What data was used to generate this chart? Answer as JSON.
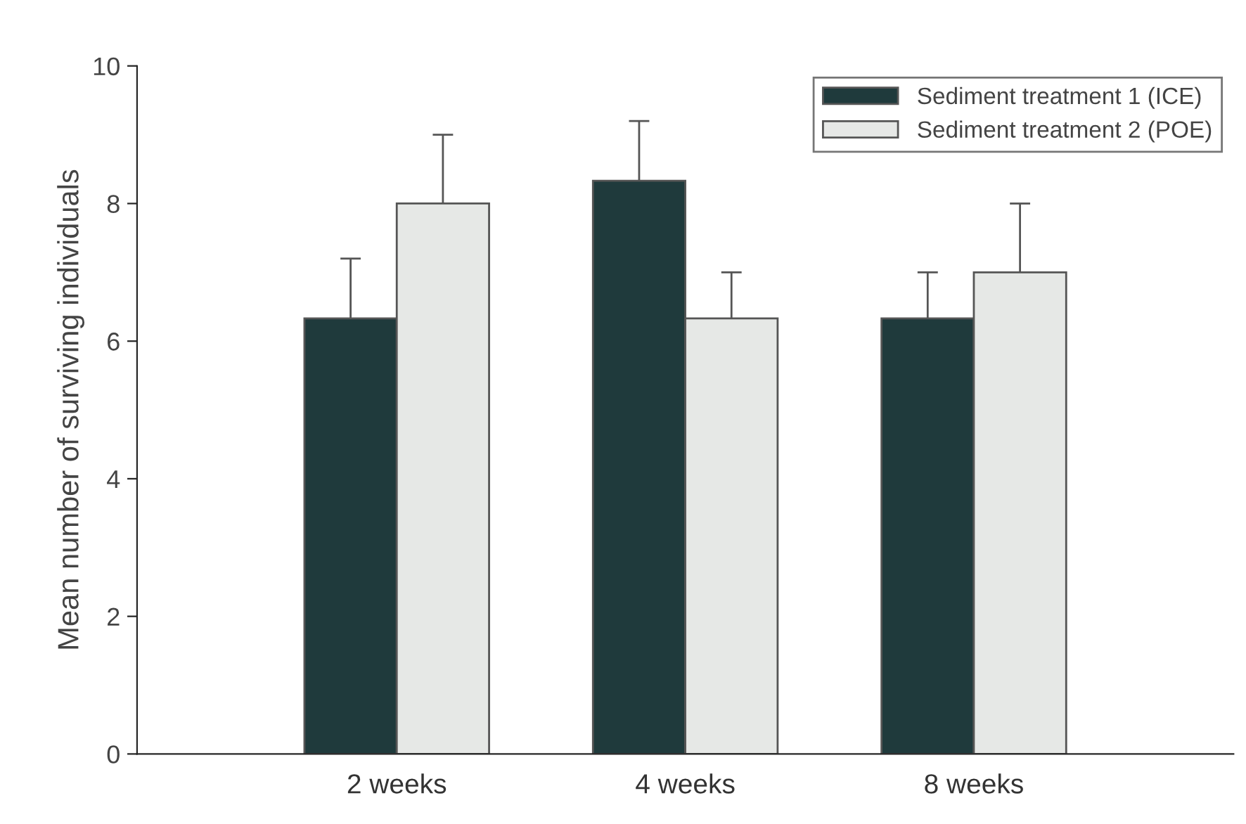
{
  "chart_data": {
    "type": "bar",
    "ylabel": "Mean number of surviving individuals",
    "categories": [
      "2 weeks",
      "4 weeks",
      "8 weeks"
    ],
    "series": [
      {
        "name": "Sediment treatment 1 (ICE)",
        "color": "#1f3a3c",
        "values": [
          6.33,
          8.33,
          6.33
        ],
        "errors": [
          [
            6.33,
            7.2
          ],
          [
            8.33,
            9.2
          ],
          [
            6.33,
            7.0
          ]
        ]
      },
      {
        "name": "Sediment treatment 2 (POE)",
        "color": "#e6e8e6",
        "values": [
          8.0,
          6.33,
          7.0
        ],
        "errors": [
          [
            8.0,
            9.0
          ],
          [
            6.33,
            7.0
          ],
          [
            7.0,
            8.0
          ]
        ]
      }
    ],
    "ylim": [
      0,
      10
    ],
    "yticks": [
      0,
      2,
      4,
      6,
      8,
      10
    ],
    "grid": false,
    "legend": "top right"
  }
}
